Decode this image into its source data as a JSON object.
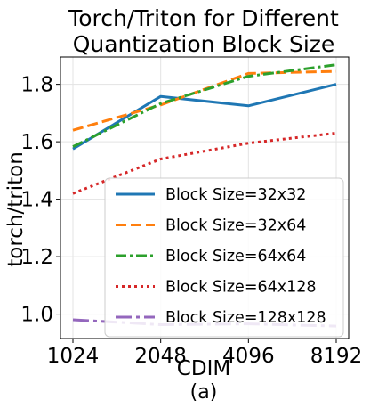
{
  "chart_data": {
    "type": "line",
    "title": [
      "Torch/Triton for Different",
      "Quantization Block Size"
    ],
    "xlabel": "CDIM",
    "ylabel": "torch/triton",
    "caption": "(a)",
    "x": [
      "1024",
      "2048",
      "4096",
      "8192"
    ],
    "x_scale": "log2",
    "y_ticks": [
      "1.0",
      "1.2",
      "1.4",
      "1.6",
      "1.8"
    ],
    "y_tick_values": [
      1.0,
      1.2,
      1.4,
      1.6,
      1.8
    ],
    "ylim": [
      0.915,
      1.895
    ],
    "grid": true,
    "legend_position": "lower-right",
    "series": [
      {
        "name": "Block Size=32x32",
        "values": [
          1.575,
          1.758,
          1.725,
          1.8
        ],
        "color": "#1f77b4",
        "dash": "solid"
      },
      {
        "name": "Block Size=32x64",
        "values": [
          1.64,
          1.728,
          1.838,
          1.845
        ],
        "color": "#ff7f0e",
        "dash": "dashed"
      },
      {
        "name": "Block Size=64x64",
        "values": [
          1.583,
          1.733,
          1.828,
          1.868
        ],
        "color": "#2ca02c",
        "dash": "dashdot"
      },
      {
        "name": "Block Size=64x128",
        "values": [
          1.42,
          1.54,
          1.595,
          1.63
        ],
        "color": "#d62728",
        "dash": "dotted"
      },
      {
        "name": "Block Size=128x128",
        "values": [
          0.98,
          0.963,
          0.966,
          0.958
        ],
        "color": "#9467bd",
        "dash": "longdashdot"
      }
    ]
  }
}
